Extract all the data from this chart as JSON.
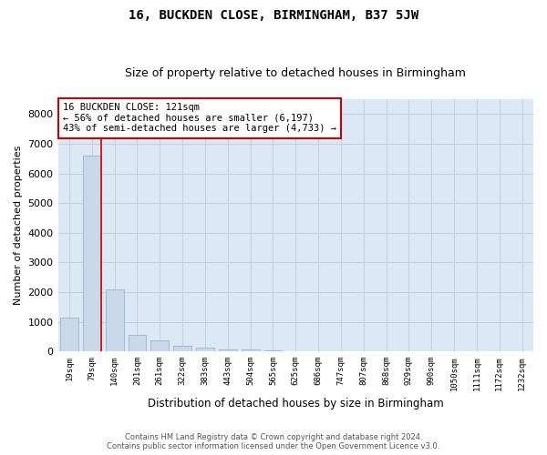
{
  "title": "16, BUCKDEN CLOSE, BIRMINGHAM, B37 5JW",
  "subtitle": "Size of property relative to detached houses in Birmingham",
  "xlabel": "Distribution of detached houses by size in Birmingham",
  "ylabel": "Number of detached properties",
  "categories": [
    "19sqm",
    "79sqm",
    "140sqm",
    "201sqm",
    "261sqm",
    "322sqm",
    "383sqm",
    "443sqm",
    "504sqm",
    "565sqm",
    "625sqm",
    "686sqm",
    "747sqm",
    "807sqm",
    "868sqm",
    "929sqm",
    "990sqm",
    "1050sqm",
    "1111sqm",
    "1172sqm",
    "1232sqm"
  ],
  "values": [
    1150,
    6600,
    2100,
    570,
    370,
    190,
    130,
    75,
    55,
    40,
    0,
    0,
    0,
    0,
    0,
    0,
    0,
    0,
    0,
    0,
    0
  ],
  "bar_color": "#c9d9ea",
  "bar_edge_color": "#9ab4cc",
  "vline_color": "#cc0000",
  "vline_x": 1.4,
  "annotation_text": "16 BUCKDEN CLOSE: 121sqm\n← 56% of detached houses are smaller (6,197)\n43% of semi-detached houses are larger (4,733) →",
  "annotation_box_facecolor": "#ffffff",
  "annotation_box_edgecolor": "#cc0000",
  "grid_color": "#c0d0e0",
  "background_color": "#dce8f4",
  "ylim": [
    0,
    8500
  ],
  "yticks": [
    0,
    1000,
    2000,
    3000,
    4000,
    5000,
    6000,
    7000,
    8000
  ],
  "title_fontsize": 10,
  "subtitle_fontsize": 9,
  "footer_line1": "Contains HM Land Registry data © Crown copyright and database right 2024.",
  "footer_line2": "Contains public sector information licensed under the Open Government Licence v3.0."
}
